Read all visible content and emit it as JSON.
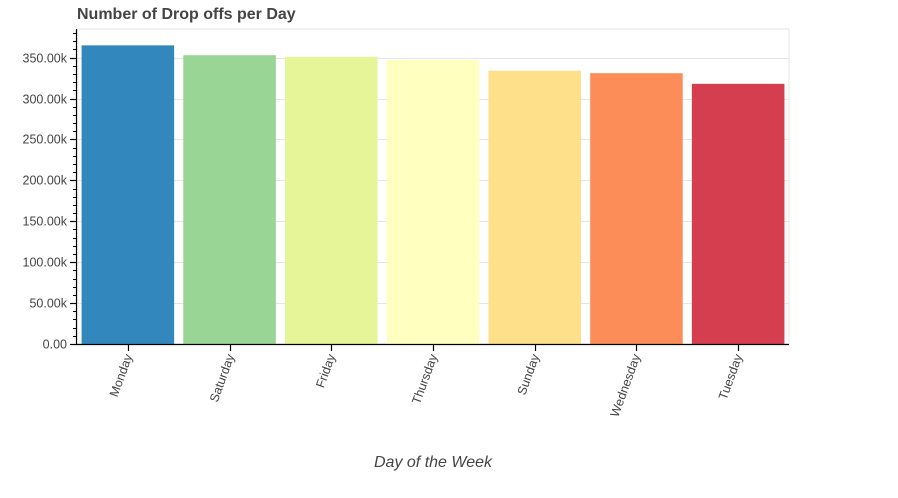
{
  "chart_data": {
    "type": "bar",
    "title": "Number of Drop offs per Day",
    "xlabel": "Day of the Week",
    "ylabel": "",
    "categories": [
      "Monday",
      "Saturday",
      "Friday",
      "Thursday",
      "Sunday",
      "Wednesday",
      "Tuesday"
    ],
    "values": [
      365000,
      353000,
      351000,
      347000,
      334000,
      331000,
      318000
    ],
    "colors": [
      "#3288bd",
      "#99d594",
      "#e6f598",
      "#ffffbf",
      "#fee08b",
      "#fc8d59",
      "#d53e4f"
    ],
    "ylim": [
      0,
      385000
    ],
    "yticks": [
      0,
      50000,
      100000,
      150000,
      200000,
      250000,
      300000,
      350000
    ],
    "ytick_labels": [
      "0.00",
      "50.00k",
      "100.00k",
      "150.00k",
      "200.00k",
      "250.00k",
      "300.00k",
      "350.00k"
    ],
    "grid": true,
    "legend": "none"
  }
}
